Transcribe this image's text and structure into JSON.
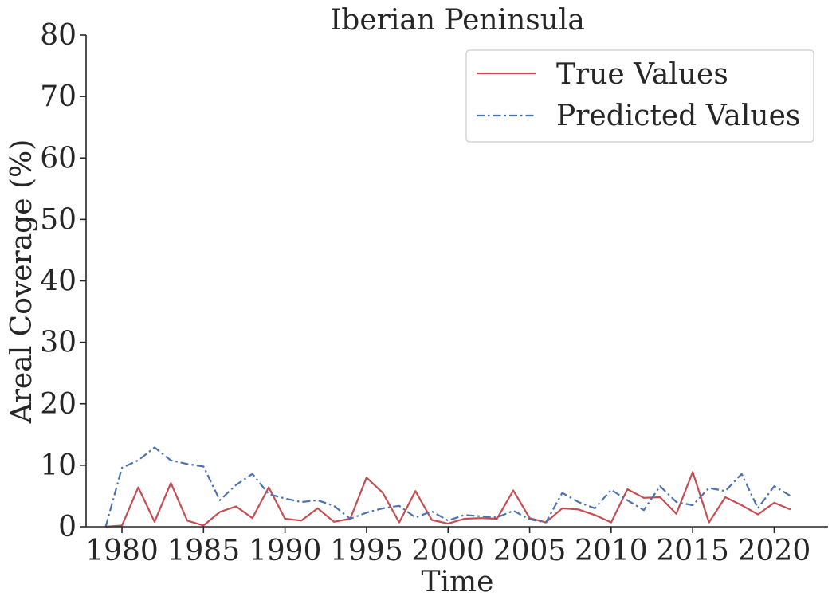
{
  "chart_data": {
    "type": "line",
    "title": "Iberian Peninsula",
    "xlabel": "Time",
    "ylabel": "Areal Coverage (%)",
    "xlim": [
      1977.8,
      2023.3
    ],
    "ylim": [
      0,
      80
    ],
    "xticks": [
      1980,
      1985,
      1990,
      1995,
      2000,
      2005,
      2010,
      2015,
      2020
    ],
    "yticks": [
      0,
      10,
      20,
      30,
      40,
      50,
      60,
      70,
      80
    ],
    "grid": false,
    "legend": "top-right",
    "x": [
      1979,
      1980,
      1981,
      1982,
      1983,
      1984,
      1985,
      1986,
      1987,
      1988,
      1989,
      1990,
      1991,
      1992,
      1993,
      1994,
      1995,
      1996,
      1997,
      1998,
      1999,
      2000,
      2001,
      2002,
      2003,
      2004,
      2005,
      2006,
      2007,
      2008,
      2009,
      2010,
      2011,
      2012,
      2013,
      2014,
      2015,
      2016,
      2017,
      2018,
      2019,
      2020,
      2021
    ],
    "series": [
      {
        "name": "True Values",
        "color": "#c44e52",
        "style": "solid",
        "values": [
          0,
          0.2,
          6.4,
          0.8,
          7.1,
          1.0,
          0.2,
          2.4,
          3.3,
          1.4,
          6.4,
          1.3,
          1.0,
          3.0,
          0.8,
          1.3,
          8.0,
          5.5,
          0.7,
          5.8,
          1.1,
          0.5,
          1.3,
          1.4,
          1.3,
          5.9,
          1.4,
          0.7,
          3.0,
          2.8,
          1.9,
          0.7,
          6.1,
          4.7,
          4.8,
          2.1,
          8.9,
          0.7,
          4.8,
          3.5,
          2.0,
          3.9,
          2.8
        ]
      },
      {
        "name": "Predicted Values",
        "color": "#4c72b0",
        "style": "dashdot",
        "values": [
          0,
          9.6,
          10.8,
          12.9,
          10.8,
          10.2,
          9.8,
          4.3,
          6.8,
          8.6,
          5.3,
          4.6,
          4.0,
          4.3,
          3.4,
          1.3,
          2.3,
          3.0,
          3.4,
          1.5,
          2.5,
          1.0,
          1.9,
          1.7,
          1.5,
          2.6,
          1.2,
          0.7,
          5.5,
          4.0,
          3.0,
          6.0,
          4.3,
          2.7,
          6.6,
          4.0,
          3.5,
          6.3,
          5.8,
          8.6,
          3.0,
          6.6,
          5.0
        ]
      }
    ]
  }
}
